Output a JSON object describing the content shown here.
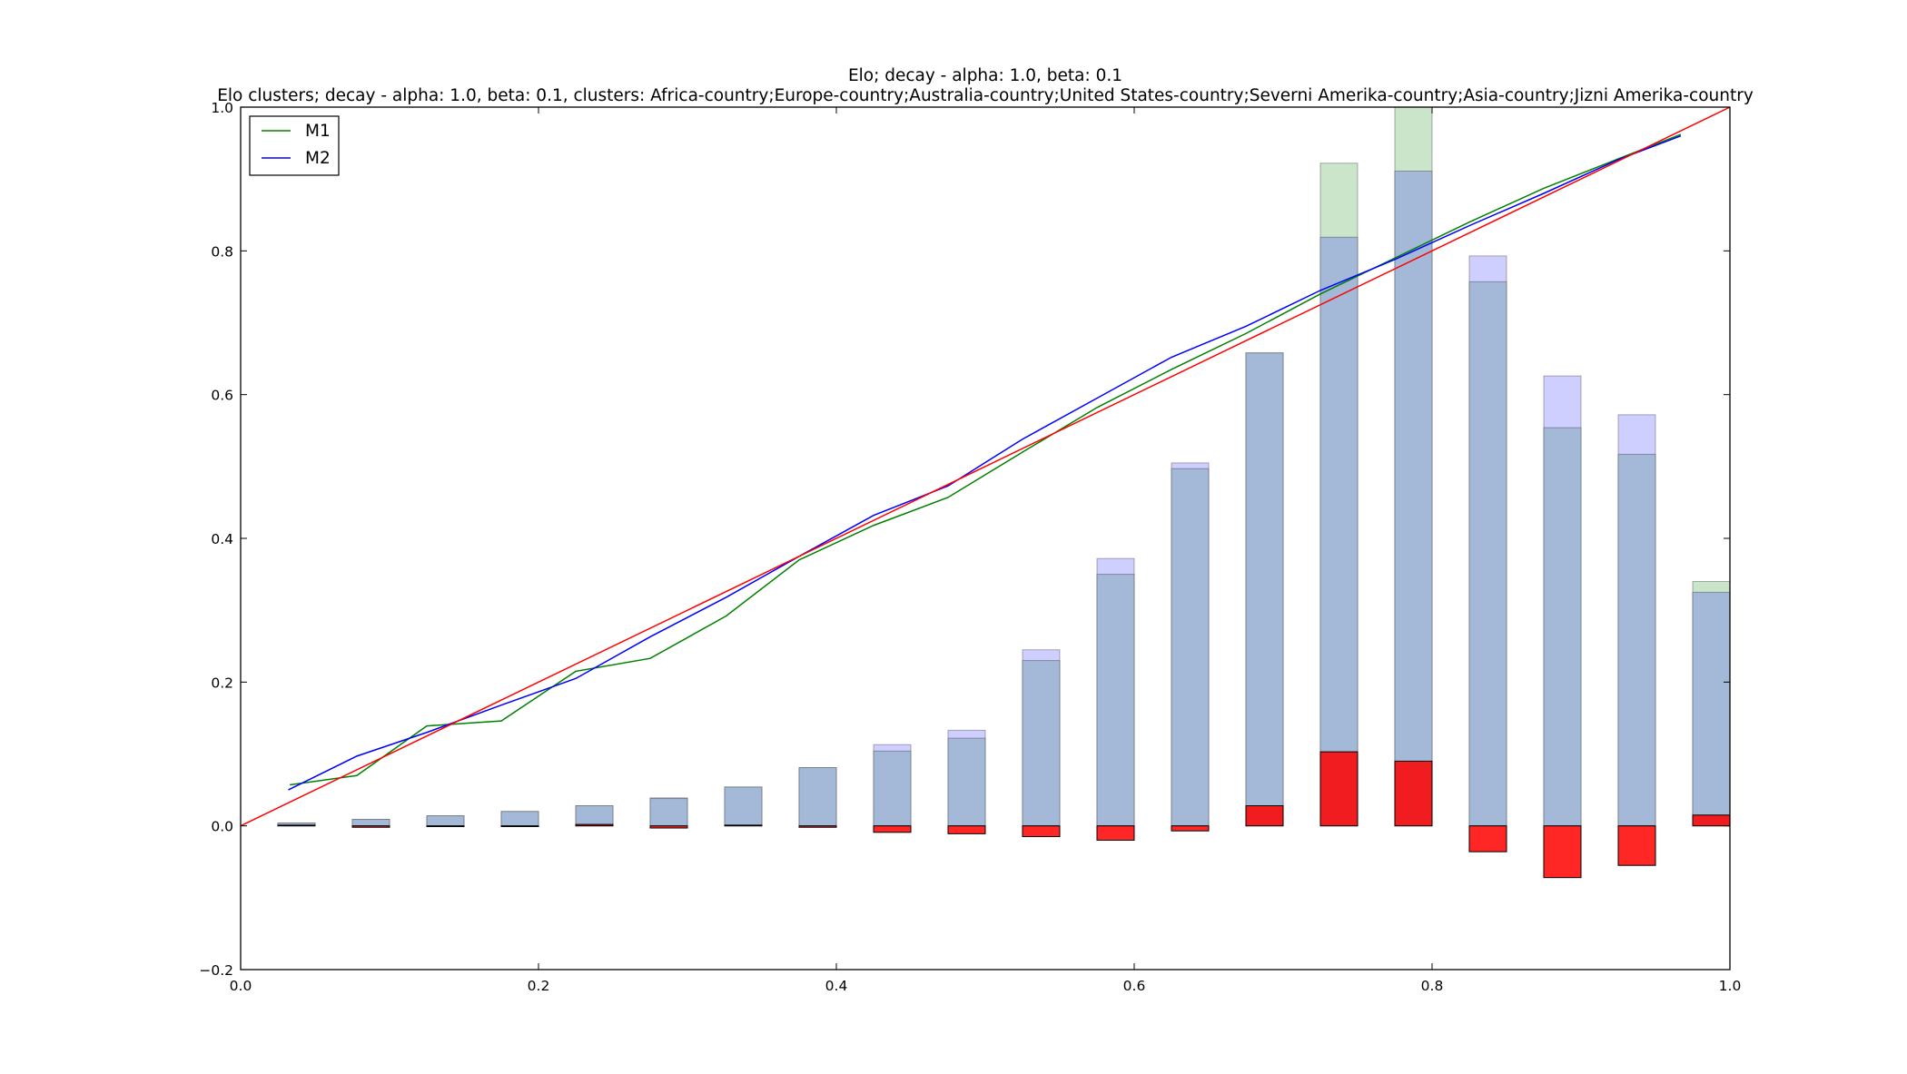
{
  "chart_data": {
    "type": "bar",
    "title": "Elo; decay - alpha: 1.0, beta: 0.1",
    "subtitle": "Elo clusters; decay - alpha: 1.0, beta: 0.1, clusters: Africa-country;Europe-country;Australia-country;United States-country;Severni Amerika-country;Asia-country;Jizni Amerika-country",
    "xlabel": "",
    "ylabel": "",
    "xlim": [
      0.0,
      1.0
    ],
    "ylim": [
      -0.2,
      1.0
    ],
    "xticks": [
      "0.0",
      "0.2",
      "0.4",
      "0.6",
      "0.8",
      "1.0"
    ],
    "yticks": [
      "−0.2",
      "0.0",
      "0.2",
      "0.4",
      "0.6",
      "0.8",
      "1.0"
    ],
    "grid": false,
    "legend": {
      "placement": "top-left",
      "entries": [
        "M1",
        "M2"
      ]
    },
    "colors": {
      "M1": "#008000",
      "M2": "#0000ff",
      "diagonal": "#ff0000",
      "bar_M1": "#a0d0a0",
      "bar_M2": "#a8a8ff",
      "bar_diff": "#ff0000",
      "overlap": "#a4b8d8"
    },
    "bar_width": 0.025,
    "bar_centers": [
      0.0375,
      0.0875,
      0.1375,
      0.1875,
      0.2375,
      0.2875,
      0.3375,
      0.3875,
      0.4375,
      0.4875,
      0.5375,
      0.5875,
      0.6375,
      0.6875,
      0.7375,
      0.7875,
      0.8375,
      0.8875,
      0.9375,
      0.9875
    ],
    "series": [
      {
        "name": "M1",
        "kind": "line",
        "x": [
          0.033,
          0.078,
          0.125,
          0.175,
          0.225,
          0.275,
          0.326,
          0.375,
          0.425,
          0.475,
          0.525,
          0.575,
          0.625,
          0.675,
          0.725,
          0.775,
          0.825,
          0.875,
          0.925,
          0.967
        ],
        "y": [
          0.057,
          0.07,
          0.139,
          0.146,
          0.215,
          0.233,
          0.292,
          0.37,
          0.418,
          0.457,
          0.52,
          0.582,
          0.635,
          0.685,
          0.74,
          0.79,
          0.84,
          0.887,
          0.928,
          0.962
        ]
      },
      {
        "name": "M2",
        "kind": "line",
        "x": [
          0.032,
          0.078,
          0.125,
          0.175,
          0.225,
          0.275,
          0.326,
          0.375,
          0.425,
          0.475,
          0.525,
          0.575,
          0.625,
          0.675,
          0.725,
          0.775,
          0.825,
          0.875,
          0.925,
          0.967
        ],
        "y": [
          0.05,
          0.097,
          0.13,
          0.168,
          0.205,
          0.263,
          0.318,
          0.375,
          0.432,
          0.473,
          0.538,
          0.595,
          0.652,
          0.695,
          0.745,
          0.788,
          0.835,
          0.88,
          0.927,
          0.96
        ]
      },
      {
        "name": "",
        "kind": "line",
        "x": [
          0.0,
          1.0
        ],
        "y": [
          0.0,
          1.0
        ]
      },
      {
        "name": "",
        "kind": "bar",
        "values": [
          0.004,
          0.009,
          0.014,
          0.02,
          0.028,
          0.038,
          0.054,
          0.081,
          0.104,
          0.122,
          0.23,
          0.35,
          0.497,
          0.658,
          0.922,
          1.0,
          0.757,
          0.554,
          0.517,
          0.34
        ]
      },
      {
        "name": "",
        "kind": "bar",
        "values": [
          0.004,
          0.009,
          0.014,
          0.02,
          0.028,
          0.039,
          0.054,
          0.081,
          0.113,
          0.133,
          0.245,
          0.372,
          0.505,
          0.658,
          0.819,
          0.911,
          0.793,
          0.626,
          0.572,
          0.325
        ]
      },
      {
        "name": "",
        "kind": "bar",
        "values": [
          0.001,
          -0.002,
          -0.001,
          0.0,
          0.002,
          -0.003,
          0.001,
          -0.002,
          -0.009,
          -0.011,
          -0.015,
          -0.02,
          -0.007,
          0.028,
          0.103,
          0.09,
          -0.036,
          -0.072,
          -0.055,
          0.015
        ]
      }
    ]
  }
}
